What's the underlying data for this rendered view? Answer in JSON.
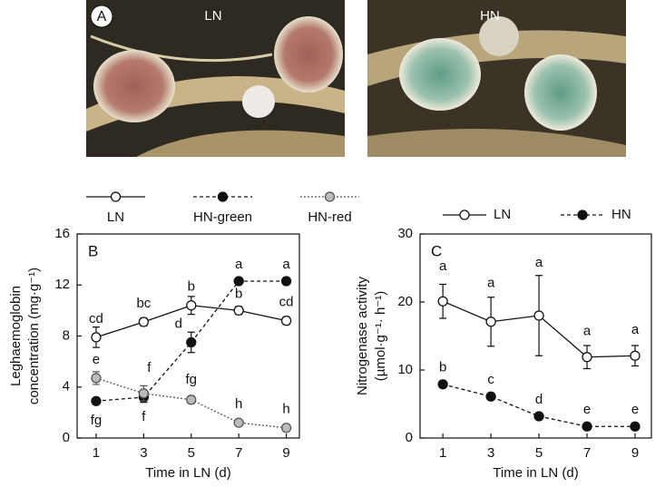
{
  "panel_a": {
    "label": "A",
    "left_label": "LN",
    "right_label": "HN"
  },
  "chart_data": [
    {
      "type": "line",
      "panel": "B",
      "x_label": "Time in LN (d)",
      "y_label": [
        "Leghaemoglobin",
        "concentration (mg·g⁻¹)"
      ],
      "x": [
        1,
        3,
        5,
        7,
        9
      ],
      "xlim": [
        0.2,
        9.55
      ],
      "xticks": [
        1,
        3,
        5,
        7,
        9
      ],
      "ylim": [
        0,
        16
      ],
      "yticks": [
        0,
        4,
        8,
        12,
        16
      ],
      "series": [
        {
          "name": "LN",
          "color": "#111111",
          "marker_fill": "#ffffff",
          "line_style": "solid",
          "values": [
            7.9,
            9.1,
            10.4,
            10.0,
            9.2
          ],
          "errors": [
            0.8,
            0.3,
            0.7,
            0.3,
            0.3
          ],
          "letters": [
            "cd",
            "bc",
            "b",
            "b",
            "cd"
          ]
        },
        {
          "name": "HN-green",
          "color": "#111111",
          "marker_fill": "#111111",
          "line_style": "dashed",
          "values": [
            2.9,
            3.2,
            7.5,
            12.3,
            12.3
          ],
          "errors": [
            0.2,
            0.4,
            0.8,
            0.2,
            0.2
          ],
          "letters": [
            "fg",
            "f",
            "d",
            "a",
            "a"
          ]
        },
        {
          "name": "HN-red",
          "color": "#555555",
          "marker_fill": "#bbbbbb",
          "line_style": "dotted",
          "values": [
            4.7,
            3.5,
            3.0,
            1.2,
            0.8
          ],
          "errors": [
            0.5,
            0.6,
            0.3,
            0.2,
            0.2
          ],
          "letters": [
            "e",
            "f",
            "fg",
            "h",
            "h"
          ]
        }
      ]
    },
    {
      "type": "line",
      "panel": "C",
      "x_label": "Time in LN (d)",
      "y_label": [
        "Nitrogenase activity",
        "(µmol·g⁻¹· h⁻¹)"
      ],
      "x": [
        1,
        3,
        5,
        7,
        9
      ],
      "xlim": [
        0.05,
        9.68
      ],
      "xticks": [
        1,
        3,
        5,
        7,
        9
      ],
      "ylim": [
        0,
        30
      ],
      "yticks": [
        0,
        10,
        20,
        30
      ],
      "series": [
        {
          "name": "LN",
          "color": "#111111",
          "marker_fill": "#ffffff",
          "line_style": "solid",
          "values": [
            20.1,
            17.1,
            18.0,
            11.9,
            12.1
          ],
          "errors": [
            2.5,
            3.6,
            5.9,
            1.7,
            1.5
          ],
          "letters": [
            "a",
            "a",
            "a",
            "a",
            "a"
          ]
        },
        {
          "name": "HN",
          "color": "#111111",
          "marker_fill": "#111111",
          "line_style": "dashed",
          "values": [
            7.9,
            6.1,
            3.2,
            1.7,
            1.7
          ],
          "errors": [
            0.4,
            0.4,
            0.3,
            0.2,
            0.2
          ],
          "letters": [
            "b",
            "c",
            "d",
            "e",
            "e"
          ]
        }
      ]
    }
  ]
}
